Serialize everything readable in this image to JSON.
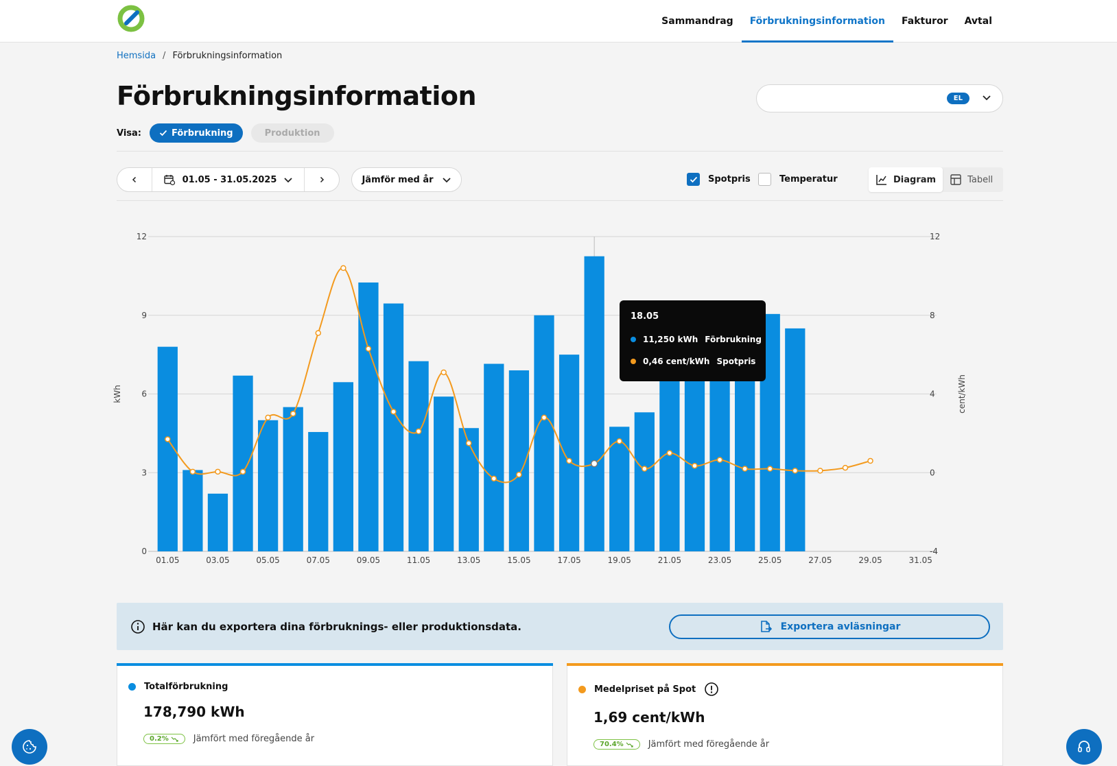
{
  "nav": {
    "items": [
      {
        "label": "Sammandrag",
        "active": false
      },
      {
        "label": "Förbrukningsinformation",
        "active": true
      },
      {
        "label": "Fakturor",
        "active": false
      },
      {
        "label": "Avtal",
        "active": false
      }
    ]
  },
  "breadcrumb": {
    "home": "Hemsida",
    "separator": "/",
    "current": "Förbrukningsinformation"
  },
  "page_title": "Förbrukningsinformation",
  "meter_select": {
    "badge": "EL"
  },
  "visa": {
    "label": "Visa:",
    "active_option": "Förbrukning",
    "inactive_option": "Produktion"
  },
  "toolbar": {
    "date_range": "01.05 - 31.05.2025",
    "compare_label": "Jämför med år",
    "spotpris_label": "Spotpris",
    "spotpris_checked": true,
    "temperatur_label": "Temperatur",
    "temperatur_checked": false,
    "view_diagram": "Diagram",
    "view_tabell": "Tabell"
  },
  "tooltip": {
    "date": "18.05",
    "consumption_value": "11,250 kWh",
    "consumption_label": "Förbrukning",
    "price_value": "0,46 cent/kWh",
    "price_label": "Spotpris"
  },
  "export": {
    "text": "Här kan du exportera dina förbruknings- eller produktionsdata.",
    "button": "Exportera avläsningar"
  },
  "cards": {
    "total": {
      "title": "Totalförbrukning",
      "value": "178,790 kWh",
      "badge": "0.2%",
      "compare": "Jämfört med föregående år"
    },
    "spot": {
      "title": "Medelpriset på Spot",
      "value": "1,69 cent/kWh",
      "badge": "70.4%",
      "compare": "Jämfört med föregående år"
    }
  },
  "colors": {
    "primary": "#0e6fc0",
    "bar": "#0a8de0",
    "spot": "#f39a1e",
    "accent_green": "#7cc142"
  },
  "chart_data": {
    "type": "bar",
    "x": [
      "01.05",
      "02.05",
      "03.05",
      "04.05",
      "05.05",
      "06.05",
      "07.05",
      "08.05",
      "09.05",
      "10.05",
      "11.05",
      "12.05",
      "13.05",
      "14.05",
      "15.05",
      "16.05",
      "17.05",
      "18.05",
      "19.05",
      "20.05",
      "21.05",
      "22.05",
      "23.05",
      "24.05",
      "25.05",
      "26.05",
      "27.05",
      "28.05",
      "29.05",
      "30.05",
      "31.05"
    ],
    "x_tick_labels": [
      "01.05",
      "03.05",
      "05.05",
      "07.05",
      "09.05",
      "11.05",
      "13.05",
      "15.05",
      "17.05",
      "19.05",
      "21.05",
      "23.05",
      "25.05",
      "27.05",
      "29.05",
      "31.05"
    ],
    "ylabel": "kWh",
    "ylabel_right": "cent/kWh",
    "ylim": [
      0,
      12
    ],
    "y_ticks": [
      0,
      3,
      6,
      9,
      12
    ],
    "ylim_right": [
      -4,
      12
    ],
    "y_ticks_right": [
      -4,
      0,
      4,
      8,
      12
    ],
    "grid": true,
    "series": [
      {
        "name": "Förbrukning",
        "type": "bar",
        "axis": "left",
        "values": [
          7.8,
          3.1,
          2.2,
          6.7,
          5.0,
          5.5,
          4.55,
          6.45,
          10.25,
          9.45,
          7.25,
          5.9,
          4.7,
          7.15,
          6.9,
          9.0,
          7.5,
          11.25,
          4.75,
          5.3,
          7.1,
          7.1,
          7.1,
          6.7,
          9.05,
          8.5,
          null,
          null,
          null,
          null,
          null
        ]
      },
      {
        "name": "Spotpris",
        "type": "line",
        "axis": "right",
        "values": [
          1.7,
          0.05,
          0.05,
          0.05,
          2.8,
          3.0,
          7.1,
          10.4,
          6.3,
          3.1,
          2.1,
          5.1,
          1.5,
          -0.3,
          -0.1,
          2.8,
          0.6,
          0.46,
          1.6,
          0.2,
          1.0,
          0.35,
          0.65,
          0.2,
          0.2,
          0.1,
          0.1,
          0.25,
          0.6,
          null,
          null
        ]
      }
    ]
  }
}
